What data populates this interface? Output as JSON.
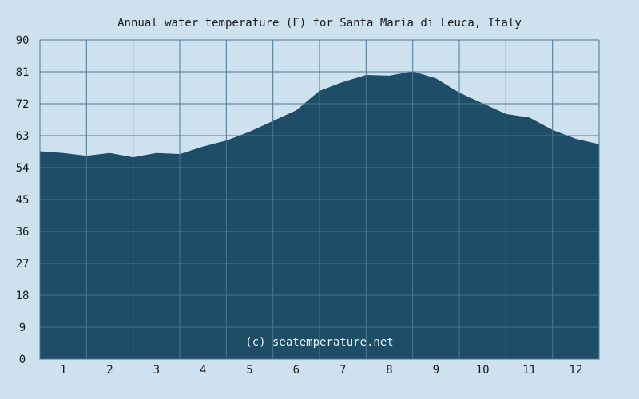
{
  "chart_data": {
    "type": "area",
    "title": "Annual water temperature (F) for Santa Maria di Leuca, Italy",
    "xlabel": "",
    "ylabel": "",
    "ylim": [
      0,
      90
    ],
    "y_ticks": [
      0,
      9,
      18,
      27,
      36,
      45,
      54,
      63,
      72,
      81,
      90
    ],
    "x_ticks": [
      "1",
      "2",
      "3",
      "4",
      "5",
      "6",
      "7",
      "8",
      "9",
      "10",
      "11",
      "12"
    ],
    "grid": true,
    "watermark": "(c) seatemperature.net",
    "colors": {
      "background": "#cde2ee",
      "area_fill": "#1e4d68",
      "grid": "#4d7590"
    },
    "series": [
      {
        "x": [
          0.5,
          1.0,
          1.5,
          2.0,
          2.5,
          3.0,
          3.5,
          4.0,
          4.5,
          5.0,
          5.5,
          6.0,
          6.5,
          7.0,
          7.5,
          8.0,
          8.5,
          9.0,
          9.5,
          10.0,
          10.5,
          11.0,
          11.5,
          12.0,
          12.5
        ],
        "values": [
          58.5,
          58,
          57.2,
          58,
          56.8,
          58,
          57.7,
          59.8,
          61.5,
          64,
          67,
          70,
          75.5,
          78,
          80,
          79.8,
          81,
          79,
          75,
          72,
          69,
          68,
          64.5,
          62,
          60.5
        ]
      }
    ]
  }
}
